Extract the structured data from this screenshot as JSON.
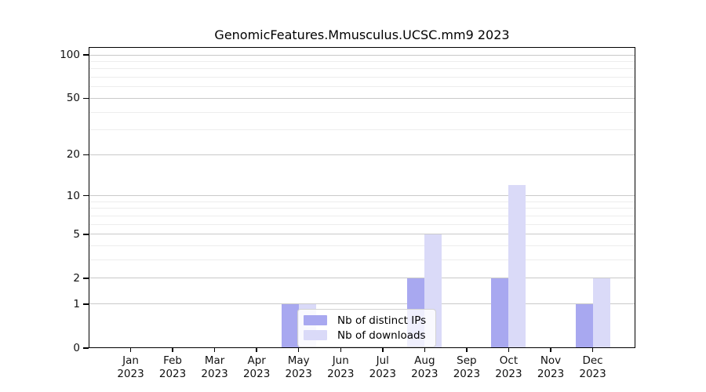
{
  "figure": {
    "background": "#ffffff",
    "plot_bg": "#ffffff"
  },
  "chart_data": {
    "type": "bar",
    "title": "GenomicFeatures.Mmusculus.UCSC.mm9 2023",
    "categories": [
      "Jan",
      "Feb",
      "Mar",
      "Apr",
      "May",
      "Jun",
      "Jul",
      "Aug",
      "Sep",
      "Oct",
      "Nov",
      "Dec"
    ],
    "year_label": "2023",
    "series": [
      {
        "name": "Nb of distinct IPs",
        "color": "#a8a8f0",
        "values": [
          0,
          0,
          0,
          0,
          1,
          0,
          0,
          2,
          0,
          2,
          0,
          1
        ]
      },
      {
        "name": "Nb of downloads",
        "color": "#dadaf8",
        "values": [
          0,
          0,
          0,
          0,
          1,
          0,
          0,
          5,
          0,
          12,
          0,
          2
        ]
      }
    ],
    "xlabel": "",
    "ylabel": "",
    "yscale": "log1p",
    "ylim": [
      0,
      114
    ],
    "y_major_ticks": [
      0,
      1,
      2,
      5,
      10,
      20,
      50,
      100
    ],
    "y_minor_gridlines": [
      3,
      4,
      6,
      7,
      8,
      9,
      30,
      40,
      60,
      70,
      80,
      90
    ],
    "grid": true,
    "legend_position": "inside-bottom-center-left",
    "colors": {
      "major_grid": "#c9c9c9",
      "minor_grid": "#ededed",
      "axis": "#000000",
      "background": "#ffffff"
    }
  }
}
